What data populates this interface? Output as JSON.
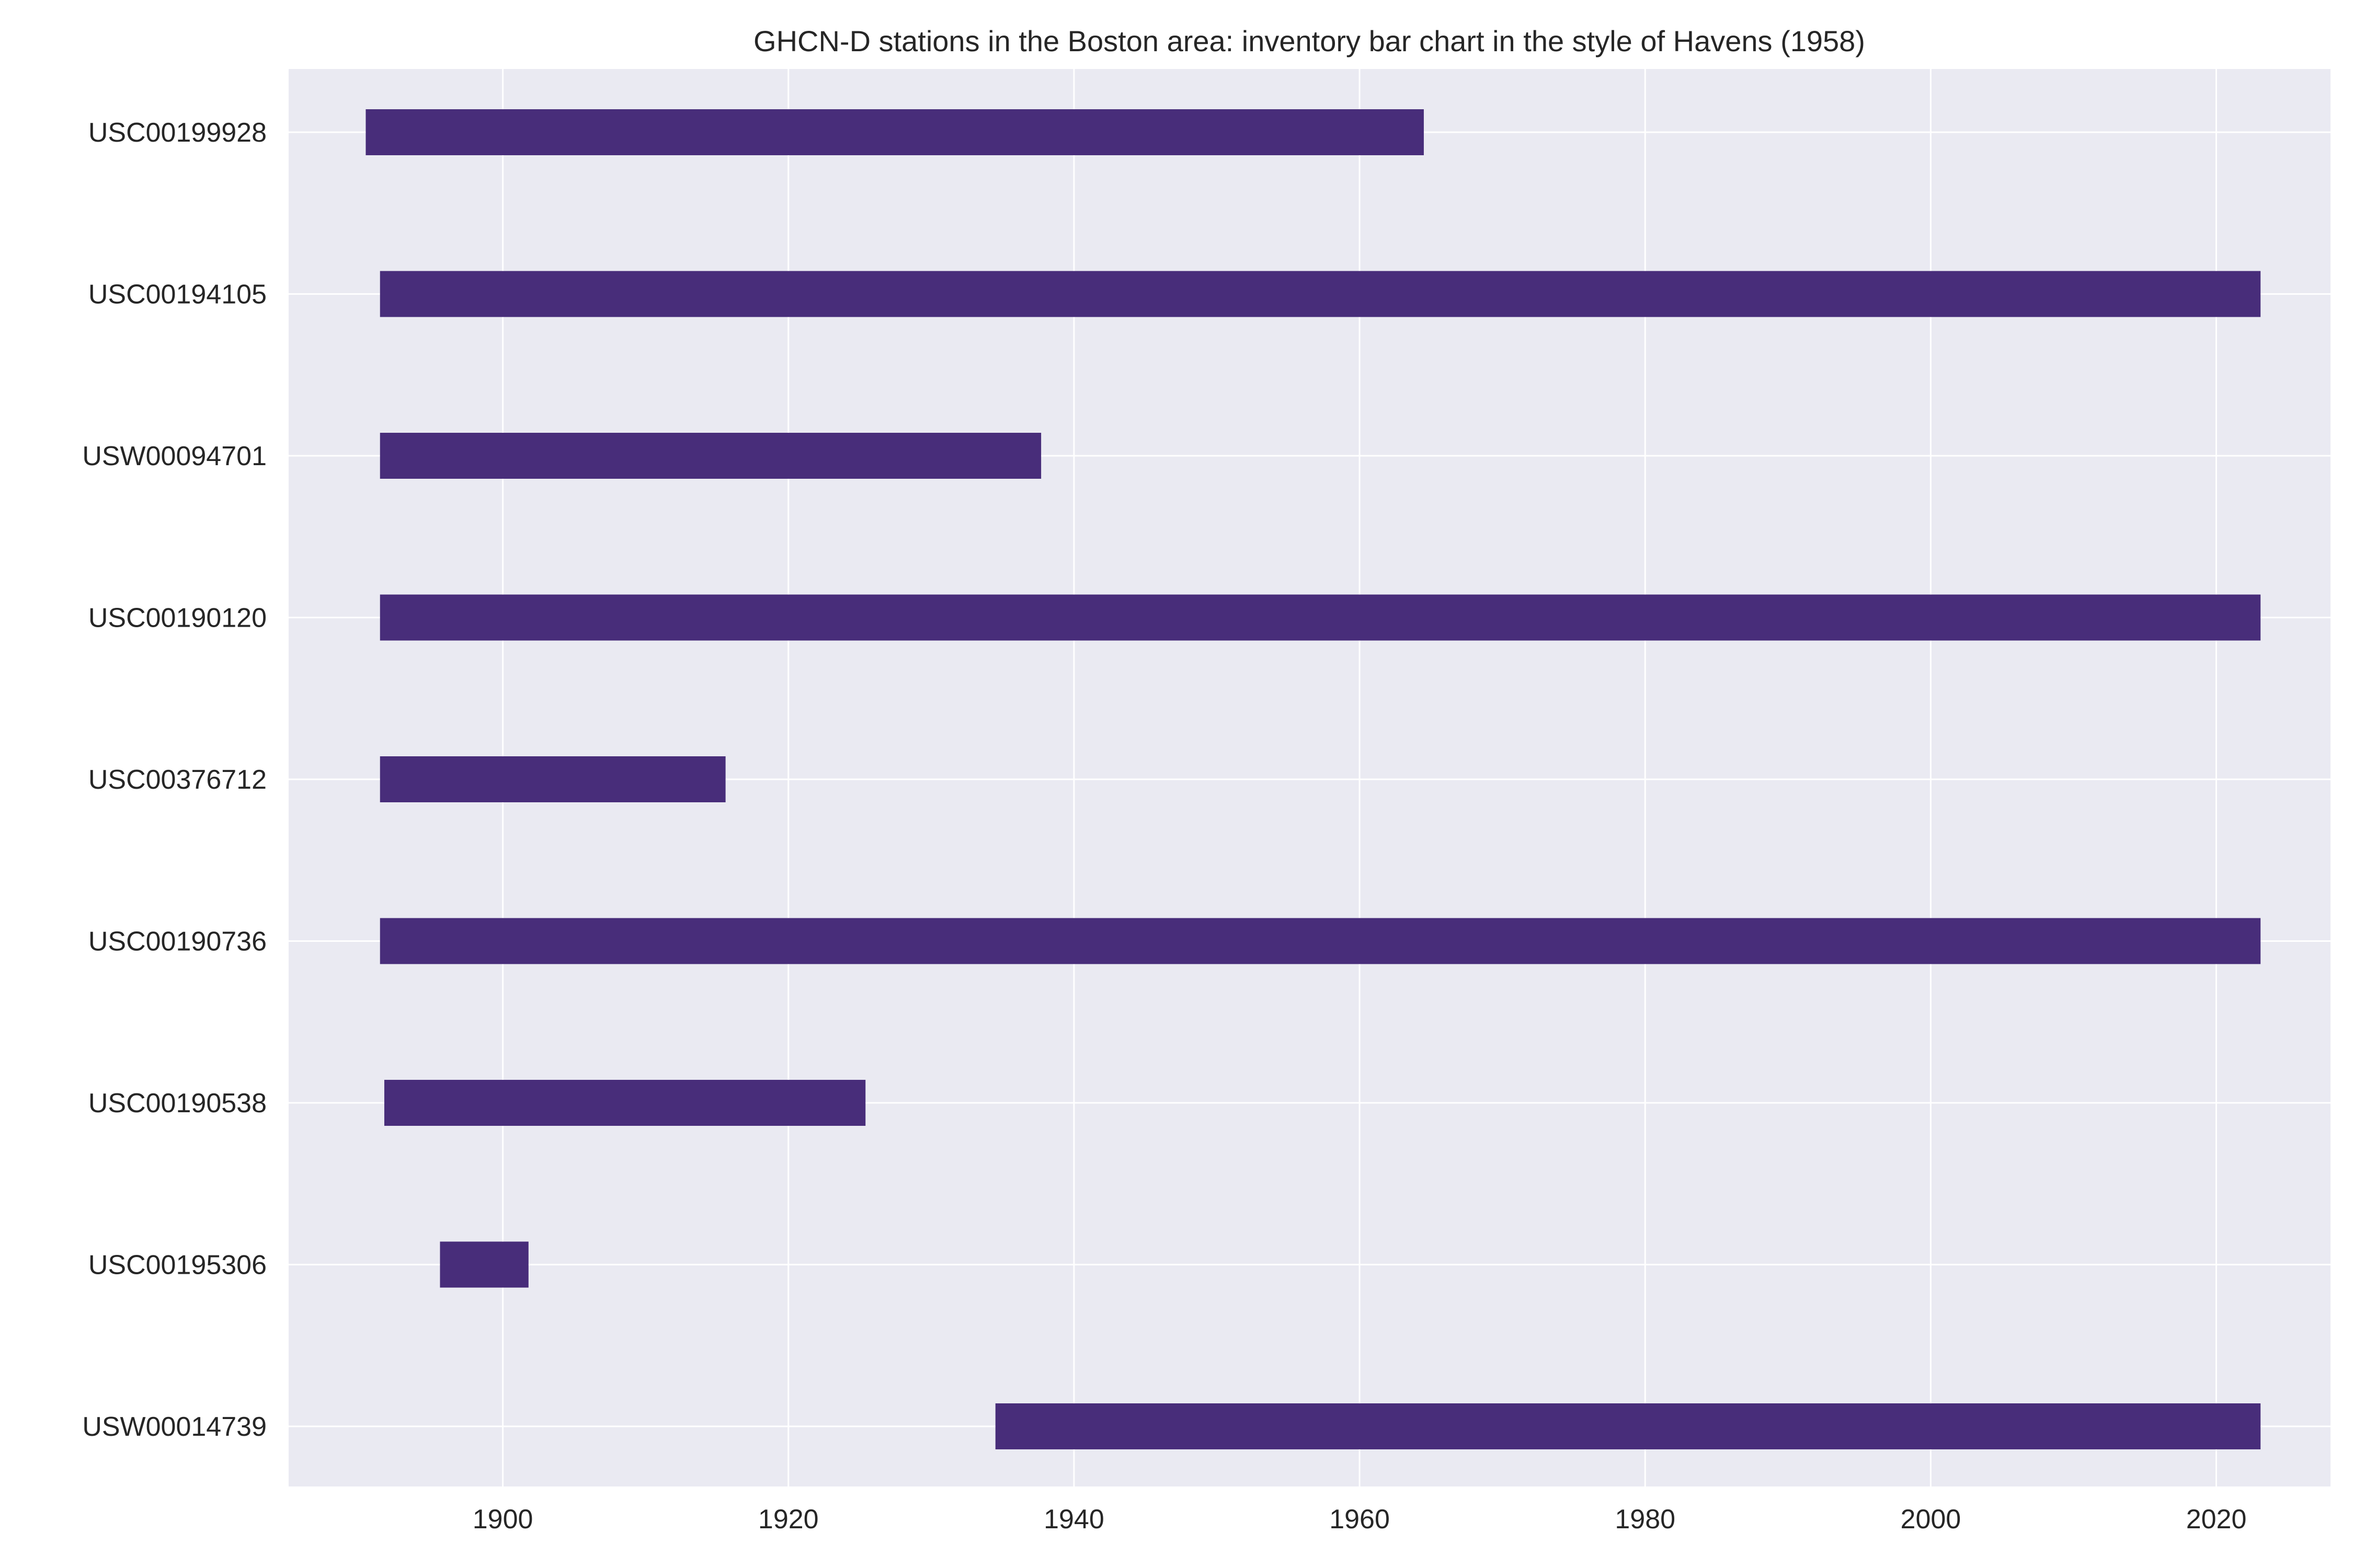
{
  "chart_data": {
    "type": "bar",
    "orientation": "horizontal",
    "title": "GHCN-D stations in the Boston area: inventory bar chart in the style of Havens (1958)",
    "xlabel": "",
    "ylabel": "",
    "xlim": [
      1885,
      2028
    ],
    "x_ticks": [
      1900,
      1920,
      1940,
      1960,
      1980,
      2000,
      2020
    ],
    "grid": true,
    "legend": "none",
    "colors": {
      "bar": "#482d7a",
      "plot_background": "#eaeaf2",
      "grid": "#ffffff",
      "text": "#262626"
    },
    "categories": [
      "USC00199928",
      "USC00194105",
      "USW00094701",
      "USC00190120",
      "USC00376712",
      "USC00190736",
      "USC00190538",
      "USC00195306",
      "USW00014739"
    ],
    "series": [
      {
        "ranges": [
          [
            1890.4,
            1964.5
          ],
          [
            1891.4,
            2023.1
          ],
          [
            1891.4,
            1937.7
          ],
          [
            1891.4,
            2023.1
          ],
          [
            1891.4,
            1915.6
          ],
          [
            1891.4,
            2023.1
          ],
          [
            1891.7,
            1925.4
          ],
          [
            1895.6,
            1901.8
          ],
          [
            1934.5,
            2023.1
          ]
        ]
      }
    ]
  }
}
